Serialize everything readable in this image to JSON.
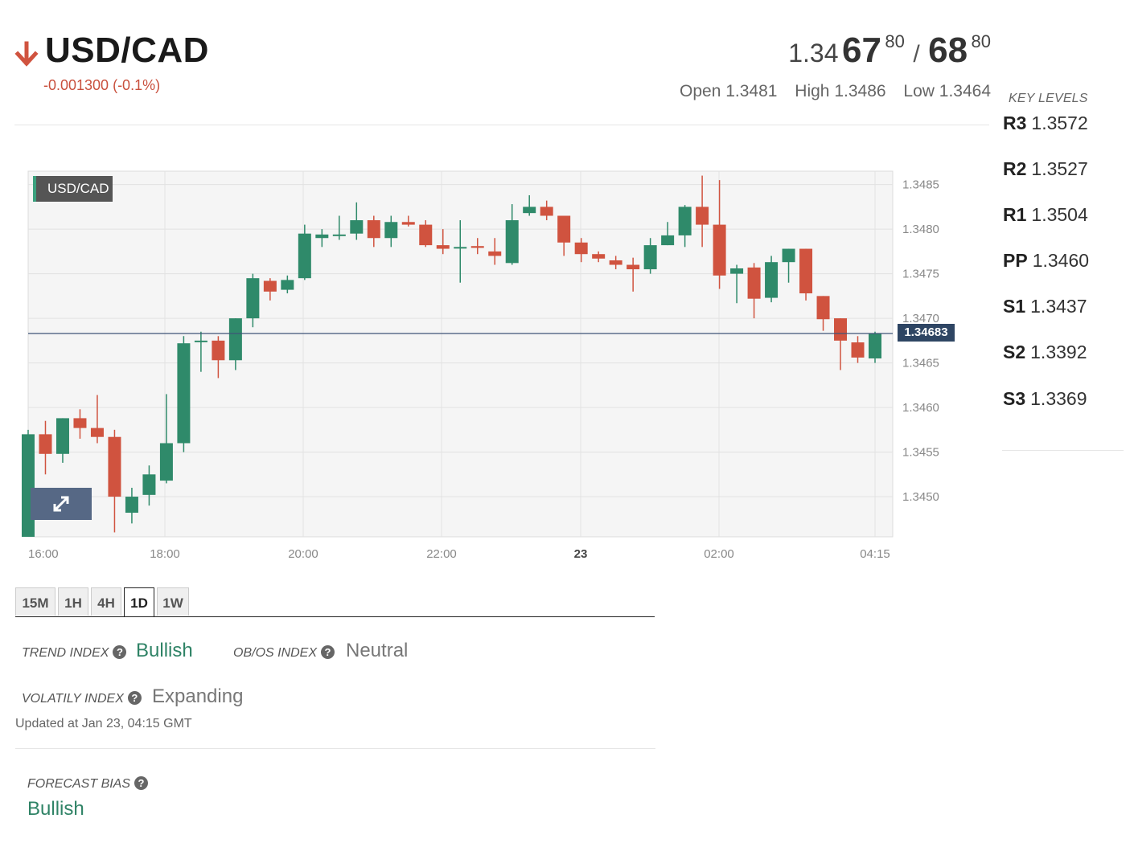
{
  "header": {
    "pair": "USD/CAD",
    "direction_icon": "arrow-down-icon",
    "change": "-0.001300 (-0.1%)",
    "bid": {
      "prefix": "1.34",
      "big": "67",
      "pip": "80"
    },
    "ask": {
      "big": "68",
      "pip": "80"
    },
    "slash": "/",
    "open": "Open 1.3481",
    "high": "High 1.3486",
    "low": "Low 1.3464"
  },
  "key_levels": {
    "title": "KEY LEVELS",
    "items": [
      {
        "name": "R3",
        "value": "1.3572"
      },
      {
        "name": "R2",
        "value": "1.3527"
      },
      {
        "name": "R1",
        "value": "1.3504"
      },
      {
        "name": "PP",
        "value": "1.3460"
      },
      {
        "name": "S1",
        "value": "1.3437"
      },
      {
        "name": "S2",
        "value": "1.3392"
      },
      {
        "name": "S3",
        "value": "1.3369"
      }
    ]
  },
  "chart_data": {
    "type": "candlestick",
    "symbol": "USD/CAD",
    "current_price": "1.34683",
    "ylim": [
      1.34455,
      1.34865
    ],
    "y_ticks": [
      "1.3450",
      "1.3455",
      "1.3460",
      "1.3465",
      "1.3470",
      "1.3475",
      "1.3480",
      "1.3485"
    ],
    "x_ticks": [
      "16:00",
      "18:00",
      "20:00",
      "22:00",
      "23",
      "02:00",
      "04:15"
    ],
    "grid": true,
    "candles": [
      {
        "o": 1.34455,
        "h": 1.34575,
        "l": 1.34445,
        "c": 1.3457
      },
      {
        "o": 1.3457,
        "h": 1.34585,
        "l": 1.34525,
        "c": 1.34548
      },
      {
        "o": 1.34548,
        "h": 1.34588,
        "l": 1.34538,
        "c": 1.34588
      },
      {
        "o": 1.34588,
        "h": 1.34598,
        "l": 1.34565,
        "c": 1.34577
      },
      {
        "o": 1.34577,
        "h": 1.34614,
        "l": 1.3456,
        "c": 1.34567
      },
      {
        "o": 1.34567,
        "h": 1.34575,
        "l": 1.3446,
        "c": 1.345
      },
      {
        "o": 1.34482,
        "h": 1.3451,
        "l": 1.3447,
        "c": 1.345
      },
      {
        "o": 1.34502,
        "h": 1.34535,
        "l": 1.3449,
        "c": 1.34525
      },
      {
        "o": 1.34518,
        "h": 1.34615,
        "l": 1.34515,
        "c": 1.3456
      },
      {
        "o": 1.3456,
        "h": 1.3468,
        "l": 1.3455,
        "c": 1.34672
      },
      {
        "o": 1.34675,
        "h": 1.34685,
        "l": 1.3464,
        "c": 1.34675
      },
      {
        "o": 1.34675,
        "h": 1.3468,
        "l": 1.34633,
        "c": 1.34653
      },
      {
        "o": 1.34653,
        "h": 1.347,
        "l": 1.34642,
        "c": 1.347
      },
      {
        "o": 1.347,
        "h": 1.3475,
        "l": 1.3469,
        "c": 1.34745
      },
      {
        "o": 1.34742,
        "h": 1.34745,
        "l": 1.3472,
        "c": 1.3473
      },
      {
        "o": 1.34732,
        "h": 1.34748,
        "l": 1.34728,
        "c": 1.34743
      },
      {
        "o": 1.34745,
        "h": 1.34805,
        "l": 1.34743,
        "c": 1.34795
      },
      {
        "o": 1.3479,
        "h": 1.348,
        "l": 1.3478,
        "c": 1.34794
      },
      {
        "o": 1.34793,
        "h": 1.34815,
        "l": 1.34788,
        "c": 1.34794
      },
      {
        "o": 1.34795,
        "h": 1.3483,
        "l": 1.34788,
        "c": 1.3481
      },
      {
        "o": 1.3481,
        "h": 1.34815,
        "l": 1.3478,
        "c": 1.3479
      },
      {
        "o": 1.3479,
        "h": 1.34815,
        "l": 1.3478,
        "c": 1.34808
      },
      {
        "o": 1.34808,
        "h": 1.34815,
        "l": 1.34803,
        "c": 1.34805
      },
      {
        "o": 1.34805,
        "h": 1.3481,
        "l": 1.3478,
        "c": 1.34782
      },
      {
        "o": 1.34782,
        "h": 1.348,
        "l": 1.34772,
        "c": 1.34778
      },
      {
        "o": 1.3478,
        "h": 1.3481,
        "l": 1.3474,
        "c": 1.3478
      },
      {
        "o": 1.34781,
        "h": 1.3479,
        "l": 1.34772,
        "c": 1.34779
      },
      {
        "o": 1.34775,
        "h": 1.3479,
        "l": 1.3476,
        "c": 1.3477
      },
      {
        "o": 1.34762,
        "h": 1.34828,
        "l": 1.3476,
        "c": 1.3481
      },
      {
        "o": 1.34818,
        "h": 1.34838,
        "l": 1.34815,
        "c": 1.34825
      },
      {
        "o": 1.34825,
        "h": 1.34832,
        "l": 1.3481,
        "c": 1.34815
      },
      {
        "o": 1.34815,
        "h": 1.34815,
        "l": 1.3477,
        "c": 1.34785
      },
      {
        "o": 1.34785,
        "h": 1.3479,
        "l": 1.34763,
        "c": 1.34772
      },
      {
        "o": 1.34772,
        "h": 1.34775,
        "l": 1.34763,
        "c": 1.34767
      },
      {
        "o": 1.34765,
        "h": 1.3477,
        "l": 1.34755,
        "c": 1.3476
      },
      {
        "o": 1.3476,
        "h": 1.34768,
        "l": 1.3473,
        "c": 1.34755
      },
      {
        "o": 1.34755,
        "h": 1.3479,
        "l": 1.3475,
        "c": 1.34782
      },
      {
        "o": 1.34782,
        "h": 1.34808,
        "l": 1.34782,
        "c": 1.34793
      },
      {
        "o": 1.34793,
        "h": 1.34827,
        "l": 1.3478,
        "c": 1.34825
      },
      {
        "o": 1.34825,
        "h": 1.3486,
        "l": 1.3478,
        "c": 1.34805
      },
      {
        "o": 1.34805,
        "h": 1.34855,
        "l": 1.34733,
        "c": 1.34748
      },
      {
        "o": 1.3475,
        "h": 1.3476,
        "l": 1.34717,
        "c": 1.34756
      },
      {
        "o": 1.34757,
        "h": 1.34762,
        "l": 1.347,
        "c": 1.34722
      },
      {
        "o": 1.34723,
        "h": 1.3477,
        "l": 1.34718,
        "c": 1.34763
      },
      {
        "o": 1.34763,
        "h": 1.34775,
        "l": 1.3474,
        "c": 1.34778
      },
      {
        "o": 1.34778,
        "h": 1.34775,
        "l": 1.3472,
        "c": 1.34728
      },
      {
        "o": 1.34725,
        "h": 1.34725,
        "l": 1.34686,
        "c": 1.34699
      },
      {
        "o": 1.347,
        "h": 1.347,
        "l": 1.34642,
        "c": 1.34675
      },
      {
        "o": 1.34673,
        "h": 1.3468,
        "l": 1.3465,
        "c": 1.34656
      },
      {
        "o": 1.34655,
        "h": 1.34685,
        "l": 1.3465,
        "c": 1.34683
      }
    ]
  },
  "timeframes": {
    "items": [
      "15M",
      "1H",
      "4H",
      "1D",
      "1W"
    ],
    "active": "1D"
  },
  "indices": {
    "trend_label": "TREND INDEX",
    "trend_value": "Bullish",
    "obos_label": "OB/OS INDEX",
    "obos_value": "Neutral",
    "volatility_label": "VOLATILY INDEX",
    "volatility_value": "Expanding",
    "updated": "Updated at Jan 23, 04:15 GMT",
    "forecast_label": "FORECAST BIAS",
    "forecast_value": "Bullish",
    "help_icon": "question-circle-icon",
    "help_glyph": "?"
  },
  "colors": {
    "up": "#2f8a6a",
    "down": "#d0533f",
    "bullish_text": "#2f8366",
    "change_text": "#c9503d"
  }
}
